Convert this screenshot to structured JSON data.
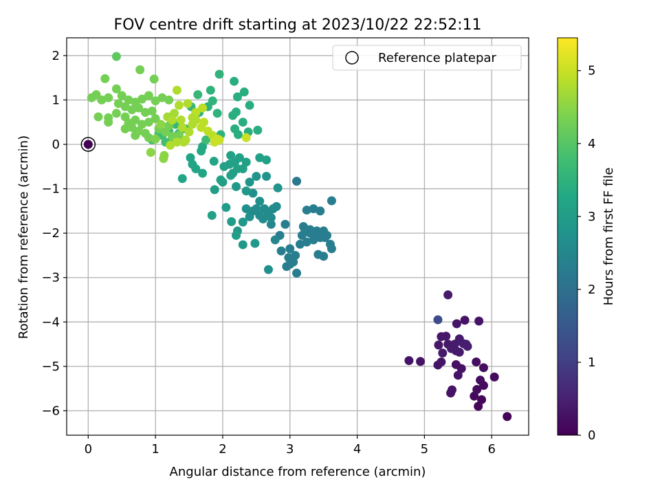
{
  "chart_data": {
    "type": "scatter",
    "title": "FOV centre drift starting at 2023/10/22 22:52:11",
    "xlabel": "Angular distance from reference (arcmin)",
    "ylabel": "Rotation from reference (arcmin)",
    "xlim": [
      -0.32,
      6.55
    ],
    "ylim": [
      -6.55,
      2.4
    ],
    "xticks": [
      0,
      1,
      2,
      3,
      4,
      5,
      6
    ],
    "yticks": [
      -6,
      -5,
      -4,
      -3,
      -2,
      -1,
      0,
      1,
      2
    ],
    "grid": true,
    "legend": {
      "placement": "top-right",
      "label": "Reference platepar"
    },
    "reference_point": {
      "x": 0,
      "y": 0
    },
    "colorbar": {
      "label": "Hours from first FF file",
      "colormap": "viridis",
      "range": [
        0,
        5.45
      ],
      "ticks": [
        0,
        1,
        2,
        3,
        4,
        5
      ]
    },
    "points": [
      [
        6.23,
        -6.13,
        0.05
      ],
      [
        5.8,
        -5.9,
        0.1
      ],
      [
        5.85,
        -5.75,
        0.1
      ],
      [
        5.74,
        -5.67,
        0.12
      ],
      [
        5.78,
        -5.52,
        0.15
      ],
      [
        5.88,
        -5.43,
        0.15
      ],
      [
        5.83,
        -5.31,
        0.18
      ],
      [
        6.04,
        -5.24,
        0.15
      ],
      [
        5.88,
        -5.03,
        0.2
      ],
      [
        5.77,
        -4.9,
        0.2
      ],
      [
        5.55,
        -5.05,
        0.25
      ],
      [
        5.47,
        -4.96,
        0.25
      ],
      [
        5.41,
        -5.53,
        0.3
      ],
      [
        5.39,
        -5.6,
        0.3
      ],
      [
        5.5,
        -5.2,
        0.3
      ],
      [
        5.2,
        -4.97,
        0.3
      ],
      [
        5.25,
        -4.9,
        0.3
      ],
      [
        5.21,
        -4.52,
        0.35
      ],
      [
        5.25,
        -4.33,
        0.35
      ],
      [
        5.32,
        -4.32,
        0.35
      ],
      [
        5.35,
        -4.5,
        0.35
      ],
      [
        5.4,
        -4.6,
        0.4
      ],
      [
        5.47,
        -4.65,
        0.4
      ],
      [
        5.45,
        -4.5,
        0.4
      ],
      [
        5.52,
        -4.38,
        0.4
      ],
      [
        5.58,
        -4.49,
        0.45
      ],
      [
        5.62,
        -4.5,
        0.45
      ],
      [
        5.64,
        -4.55,
        0.45
      ],
      [
        5.27,
        -4.7,
        0.4
      ],
      [
        5.52,
        -4.68,
        0.4
      ],
      [
        4.77,
        -4.87,
        0.3
      ],
      [
        4.94,
        -4.89,
        0.3
      ],
      [
        5.81,
        -3.98,
        0.3
      ],
      [
        5.6,
        -3.96,
        0.3
      ],
      [
        5.48,
        -4.04,
        0.3
      ],
      [
        5.35,
        -3.39,
        0.4
      ],
      [
        5.2,
        -3.95,
        1.25
      ],
      [
        3.1,
        -0.83,
        2.2
      ],
      [
        3.62,
        -1.27,
        2.3
      ],
      [
        3.25,
        -1.48,
        2.3
      ],
      [
        3.35,
        -1.45,
        2.3
      ],
      [
        3.45,
        -1.5,
        2.3
      ],
      [
        3.2,
        -1.85,
        2.3
      ],
      [
        3.3,
        -1.92,
        2.3
      ],
      [
        3.4,
        -1.95,
        2.3
      ],
      [
        3.5,
        -1.95,
        2.3
      ],
      [
        3.55,
        -2.05,
        2.3
      ],
      [
        3.45,
        -2.1,
        2.3
      ],
      [
        3.35,
        -2.15,
        2.3
      ],
      [
        3.25,
        -2.2,
        2.3
      ],
      [
        3.15,
        -2.25,
        2.3
      ],
      [
        3.6,
        -2.25,
        2.3
      ],
      [
        3.62,
        -2.35,
        2.3
      ],
      [
        3.42,
        -2.48,
        2.3
      ],
      [
        3.5,
        -2.52,
        2.3
      ],
      [
        3.08,
        -2.5,
        2.3
      ],
      [
        3.0,
        -2.35,
        2.3
      ],
      [
        2.95,
        -2.75,
        2.3
      ],
      [
        3.0,
        -2.7,
        2.3
      ],
      [
        3.05,
        -2.65,
        2.3
      ],
      [
        2.98,
        -2.55,
        2.3
      ],
      [
        3.1,
        -2.9,
        2.3
      ],
      [
        2.87,
        -2.4,
        2.3
      ],
      [
        2.85,
        -2.05,
        2.3
      ],
      [
        2.93,
        -1.8,
        2.3
      ],
      [
        3.3,
        -2.0,
        2.3
      ],
      [
        3.4,
        -2.05,
        2.3
      ],
      [
        3.18,
        -2.05,
        2.3
      ],
      [
        3.22,
        -1.9,
        2.3
      ],
      [
        3.52,
        -2.1,
        2.3
      ],
      [
        2.78,
        -2.15,
        2.5
      ],
      [
        2.72,
        -1.8,
        2.5
      ],
      [
        2.75,
        -1.45,
        2.6
      ],
      [
        2.8,
        -1.4,
        2.6
      ],
      [
        2.72,
        -1.65,
        2.6
      ],
      [
        2.62,
        -1.45,
        2.6
      ],
      [
        2.68,
        -1.55,
        2.6
      ],
      [
        2.55,
        -1.6,
        2.6
      ],
      [
        2.5,
        -1.45,
        2.6
      ],
      [
        2.45,
        -1.5,
        2.6
      ],
      [
        2.4,
        -1.63,
        2.7
      ],
      [
        2.35,
        -1.45,
        2.7
      ],
      [
        2.6,
        -1.68,
        2.6
      ],
      [
        2.55,
        -1.28,
        2.7
      ],
      [
        2.45,
        -1.1,
        2.7
      ],
      [
        2.4,
        -0.85,
        2.8
      ],
      [
        2.5,
        -0.72,
        2.8
      ],
      [
        2.65,
        -0.72,
        2.8
      ],
      [
        2.82,
        -0.98,
        2.8
      ],
      [
        2.68,
        -2.82,
        2.7
      ],
      [
        2.3,
        -1.75,
        2.9
      ],
      [
        2.22,
        -1.95,
        2.9
      ],
      [
        2.3,
        -2.26,
        2.9
      ],
      [
        2.48,
        -2.23,
        2.9
      ],
      [
        2.2,
        -2.05,
        3.0
      ],
      [
        2.13,
        -1.74,
        3.0
      ],
      [
        2.05,
        -1.42,
        3.0
      ],
      [
        1.84,
        -1.6,
        3.1
      ],
      [
        1.88,
        -1.02,
        3.0
      ],
      [
        2.0,
        -0.85,
        3.0
      ],
      [
        2.15,
        -0.65,
        3.0
      ],
      [
        2.1,
        -0.45,
        3.1
      ],
      [
        2.02,
        -0.5,
        3.1
      ],
      [
        2.12,
        -0.7,
        3.1
      ],
      [
        2.22,
        -0.55,
        3.1
      ],
      [
        2.18,
        -0.4,
        3.1
      ],
      [
        2.3,
        -0.55,
        3.1
      ],
      [
        2.35,
        -0.4,
        3.1
      ],
      [
        2.25,
        -0.3,
        3.1
      ],
      [
        2.12,
        -0.25,
        3.1
      ],
      [
        2.55,
        -0.3,
        3.1
      ],
      [
        2.65,
        -0.35,
        3.1
      ],
      [
        1.97,
        -0.8,
        3.1
      ],
      [
        1.7,
        -0.65,
        3.2
      ],
      [
        1.55,
        -0.45,
        3.2
      ],
      [
        1.6,
        -0.55,
        3.2
      ],
      [
        1.52,
        -0.3,
        3.2
      ],
      [
        1.68,
        -0.15,
        3.3
      ],
      [
        1.7,
        -0.05,
        3.3
      ],
      [
        1.4,
        -0.77,
        3.2
      ],
      [
        1.87,
        -0.38,
        3.2
      ],
      [
        2.35,
        -1.05,
        2.9
      ],
      [
        2.2,
        -0.95,
        2.9
      ],
      [
        2.17,
        1.42,
        3.4
      ],
      [
        2.32,
        1.18,
        3.4
      ],
      [
        2.22,
        1.07,
        3.4
      ],
      [
        2.4,
        0.88,
        3.4
      ],
      [
        2.15,
        0.65,
        3.4
      ],
      [
        2.2,
        0.73,
        3.4
      ],
      [
        2.3,
        0.5,
        3.4
      ],
      [
        2.18,
        0.35,
        3.4
      ],
      [
        2.38,
        0.28,
        3.4
      ],
      [
        2.52,
        0.32,
        3.4
      ],
      [
        2.23,
        0.22,
        3.4
      ],
      [
        1.95,
        1.58,
        3.5
      ],
      [
        1.82,
        1.22,
        3.5
      ],
      [
        1.85,
        0.98,
        3.5
      ],
      [
        1.92,
        0.7,
        3.5
      ],
      [
        1.78,
        0.85,
        3.5
      ],
      [
        1.65,
        0.72,
        3.5
      ],
      [
        1.63,
        1.12,
        3.6
      ],
      [
        1.53,
        0.85,
        3.6
      ],
      [
        1.97,
        0.22,
        3.5
      ],
      [
        1.3,
        0.45,
        3.6
      ],
      [
        1.45,
        0.35,
        3.6
      ],
      [
        1.35,
        0.25,
        3.7
      ],
      [
        1.2,
        0.3,
        3.7
      ],
      [
        1.25,
        0.15,
        3.7
      ],
      [
        1.1,
        0.2,
        3.8
      ],
      [
        0.95,
        0.1,
        3.8
      ],
      [
        1.05,
        0.25,
        3.8
      ],
      [
        1.15,
        0.05,
        3.8
      ],
      [
        1.75,
        0.1,
        3.7
      ],
      [
        0.42,
        1.98,
        4.1
      ],
      [
        0.77,
        1.68,
        4.3
      ],
      [
        0.98,
        1.47,
        4.3
      ],
      [
        0.25,
        1.48,
        4.3
      ],
      [
        0.42,
        1.25,
        4.3
      ],
      [
        0.12,
        1.12,
        4.3
      ],
      [
        0.05,
        1.05,
        4.3
      ],
      [
        0.2,
        1.0,
        4.3
      ],
      [
        0.3,
        1.05,
        4.3
      ],
      [
        0.5,
        1.1,
        4.3
      ],
      [
        0.6,
        1.0,
        4.3
      ],
      [
        0.7,
        0.95,
        4.3
      ],
      [
        0.8,
        1.02,
        4.3
      ],
      [
        0.9,
        1.1,
        4.3
      ],
      [
        1.0,
        0.98,
        4.3
      ],
      [
        1.1,
        1.05,
        4.3
      ],
      [
        1.2,
        1.0,
        4.3
      ],
      [
        0.45,
        0.92,
        4.3
      ],
      [
        0.55,
        0.85,
        4.3
      ],
      [
        0.65,
        0.78,
        4.3
      ],
      [
        0.75,
        0.82,
        4.3
      ],
      [
        0.85,
        0.72,
        4.3
      ],
      [
        0.95,
        0.75,
        4.3
      ],
      [
        0.3,
        0.6,
        4.3
      ],
      [
        0.3,
        0.5,
        4.3
      ],
      [
        0.15,
        0.62,
        4.3
      ],
      [
        0.42,
        0.7,
        4.3
      ],
      [
        0.55,
        0.62,
        4.3
      ],
      [
        0.6,
        0.48,
        4.3
      ],
      [
        0.7,
        0.55,
        4.3
      ],
      [
        0.8,
        0.45,
        4.3
      ],
      [
        0.9,
        0.5,
        4.3
      ],
      [
        1.0,
        0.58,
        4.3
      ],
      [
        0.55,
        0.35,
        4.3
      ],
      [
        0.65,
        0.38,
        4.3
      ],
      [
        0.75,
        0.3,
        4.3
      ],
      [
        0.85,
        0.25,
        4.3
      ],
      [
        0.9,
        0.15,
        4.3
      ],
      [
        1.05,
        0.35,
        4.3
      ],
      [
        1.15,
        0.28,
        4.3
      ],
      [
        1.25,
        0.18,
        4.3
      ],
      [
        1.35,
        0.2,
        4.3
      ],
      [
        1.2,
        0.42,
        4.3
      ],
      [
        0.7,
        0.2,
        4.3
      ],
      [
        1.12,
        -0.32,
        4.5
      ],
      [
        1.13,
        -0.25,
        4.5
      ],
      [
        0.93,
        -0.18,
        4.5
      ],
      [
        1.0,
        0.12,
        4.4
      ],
      [
        1.08,
        0.45,
        4.5
      ],
      [
        1.18,
        0.62,
        4.7
      ],
      [
        1.28,
        0.7,
        4.7
      ],
      [
        1.32,
        1.22,
        4.8
      ],
      [
        1.35,
        0.88,
        4.8
      ],
      [
        1.48,
        0.92,
        4.8
      ],
      [
        1.4,
        0.38,
        4.8
      ],
      [
        1.5,
        0.28,
        4.8
      ],
      [
        1.45,
        0.1,
        4.8
      ],
      [
        1.32,
        0.05,
        4.8
      ],
      [
        1.22,
        -0.02,
        4.8
      ],
      [
        1.6,
        0.55,
        4.8
      ],
      [
        1.55,
        0.45,
        4.8
      ],
      [
        1.7,
        0.82,
        4.9
      ],
      [
        1.72,
        0.5,
        4.9
      ],
      [
        1.78,
        0.3,
        4.9
      ],
      [
        1.85,
        0.2,
        4.9
      ],
      [
        1.92,
        0.12,
        5.0
      ],
      [
        1.88,
        0.05,
        5.0
      ],
      [
        1.95,
        0.1,
        5.0
      ],
      [
        1.68,
        0.38,
        4.9
      ],
      [
        2.35,
        0.15,
        5.0
      ],
      [
        1.6,
        0.72,
        4.9
      ],
      [
        1.38,
        0.55,
        4.8
      ],
      [
        1.25,
        0.55,
        4.8
      ],
      [
        1.42,
        0.05,
        4.8
      ],
      [
        1.55,
        0.6,
        4.8
      ]
    ]
  }
}
